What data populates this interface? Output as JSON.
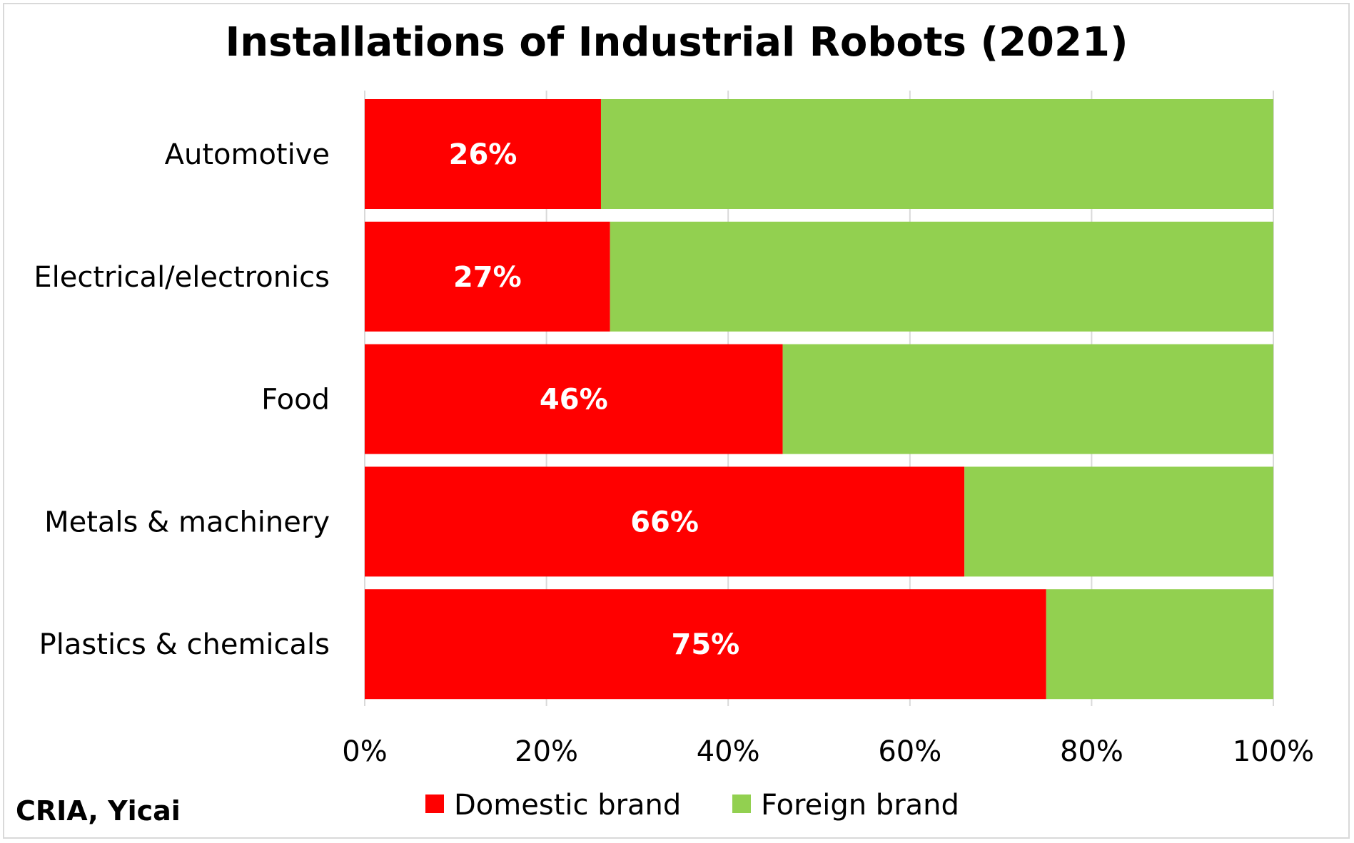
{
  "chart_data": {
    "type": "bar",
    "orientation": "horizontal",
    "stacked": true,
    "title": "Installations of Industrial Robots (2021)",
    "source": "CRIA, Yicai",
    "categories": [
      "Automotive",
      "Electrical/electronics",
      "Food",
      "Metals & machinery",
      "Plastics & chemicals"
    ],
    "series": [
      {
        "name": "Domestic brand",
        "color": "#ff0000",
        "values": [
          26,
          27,
          46,
          66,
          75
        ],
        "labels": [
          "26%",
          "27%",
          "46%",
          "66%",
          "75%"
        ]
      },
      {
        "name": "Foreign brand",
        "color": "#92d050",
        "values": [
          74,
          73,
          54,
          34,
          25
        ]
      }
    ],
    "xlim": [
      0,
      100
    ],
    "x_ticks": [
      "0%",
      "20%",
      "40%",
      "60%",
      "80%",
      "100%"
    ],
    "grid": true,
    "legend_position": "bottom"
  }
}
